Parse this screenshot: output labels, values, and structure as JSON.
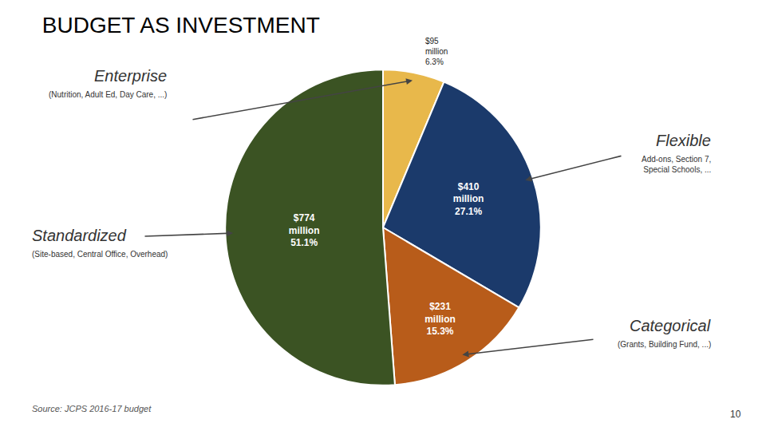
{
  "chart_data": {
    "type": "pie",
    "title": "BUDGET AS INVESTMENT",
    "categories": [
      "Enterprise",
      "Flexible",
      "Categorical",
      "Standardized"
    ],
    "values": [
      6.3,
      27.1,
      15.3,
      51.1
    ],
    "value_labels": [
      "$95\nmillion\n6.3%",
      "$410\nmillion\n27.1%",
      "$231\nmillion\n15.3%",
      "$774\nmillion\n51.1%"
    ],
    "colors": [
      "#E8B84B",
      "#1B3A6B",
      "#B85C1A",
      "#3B5323"
    ],
    "data_labels": true,
    "annotations": [
      "(Nutrition, Adult Ed, Day Care, ...)",
      "Add-ons, Section 7,\nSpecial Schools, ...",
      "(Grants, Building Fund, ...)",
      "(Site-based, Central Office, Overhead)",
      "Source: JCPS 2016-17 budget",
      "10"
    ]
  }
}
